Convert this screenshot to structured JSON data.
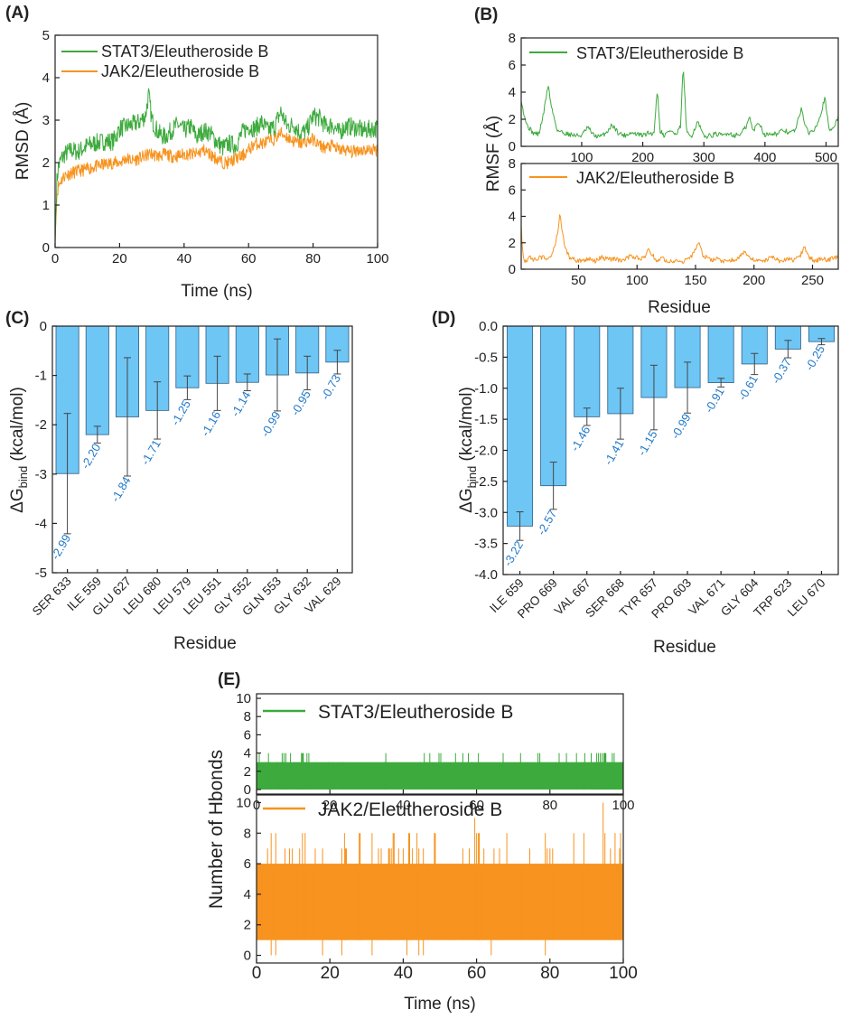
{
  "panel_labels": [
    "(A)",
    "(B)",
    "(C)",
    "(D)",
    "(E)"
  ],
  "colors": {
    "stat3": "#3daa3d",
    "jak2": "#f7931e",
    "bar": "#6ec6f5",
    "bar_edge": "#2c5f86",
    "value_label": "#1f78c8",
    "axis": "#222222"
  },
  "chart_data": [
    {
      "id": "A",
      "type": "line",
      "title": "",
      "xlabel": "Time (ns)",
      "ylabel": "RMSD (Å)",
      "xlim": [
        0,
        100
      ],
      "ylim": [
        0,
        5
      ],
      "xticks": [
        0,
        20,
        40,
        60,
        80,
        100
      ],
      "yticks": [
        0,
        1,
        2,
        3,
        4,
        5
      ],
      "legend": "top-left",
      "series": [
        {
          "name": "STAT3/Eleutheroside B",
          "color": "#3daa3d",
          "x": [
            0,
            0.5,
            1,
            2,
            3,
            5,
            7,
            10,
            12,
            15,
            18,
            20,
            22,
            24,
            26,
            28,
            29,
            30,
            32,
            34,
            36,
            38,
            40,
            42,
            44,
            46,
            48,
            50,
            52,
            54,
            56,
            58,
            60,
            62,
            64,
            66,
            68,
            70,
            72,
            74,
            76,
            78,
            80,
            82,
            84,
            86,
            88,
            90,
            92,
            94,
            96,
            98,
            100
          ],
          "values": [
            0.1,
            1.5,
            1.9,
            2.1,
            2.2,
            2.3,
            2.25,
            2.4,
            2.45,
            2.5,
            2.5,
            2.8,
            2.85,
            2.9,
            2.95,
            3.1,
            3.6,
            3.0,
            2.7,
            2.6,
            2.75,
            2.9,
            2.75,
            2.85,
            2.6,
            2.75,
            2.7,
            2.5,
            2.35,
            2.45,
            2.4,
            2.7,
            2.85,
            2.8,
            2.95,
            2.75,
            2.85,
            3.2,
            2.85,
            2.9,
            2.7,
            2.75,
            3.1,
            3.05,
            2.85,
            2.9,
            2.7,
            2.85,
            2.85,
            2.8,
            2.75,
            2.8,
            2.8
          ]
        },
        {
          "name": "JAK2/Eleutheroside B",
          "color": "#f7931e",
          "x": [
            0,
            0.5,
            1,
            2,
            3,
            5,
            7,
            10,
            12,
            15,
            18,
            20,
            22,
            24,
            26,
            28,
            29,
            30,
            32,
            34,
            36,
            38,
            40,
            42,
            44,
            46,
            48,
            50,
            52,
            54,
            56,
            58,
            60,
            62,
            64,
            66,
            68,
            70,
            72,
            74,
            76,
            78,
            80,
            82,
            84,
            86,
            88,
            90,
            92,
            94,
            96,
            98,
            100
          ],
          "values": [
            0.1,
            1.2,
            1.45,
            1.6,
            1.7,
            1.75,
            1.8,
            1.85,
            1.9,
            1.95,
            2.0,
            2.0,
            2.1,
            2.05,
            2.1,
            2.15,
            2.2,
            2.2,
            2.15,
            2.2,
            2.15,
            2.15,
            2.2,
            2.2,
            2.2,
            2.3,
            2.2,
            2.1,
            2.0,
            2.0,
            2.1,
            2.15,
            2.3,
            2.45,
            2.45,
            2.5,
            2.55,
            2.7,
            2.6,
            2.5,
            2.45,
            2.5,
            2.55,
            2.4,
            2.35,
            2.4,
            2.3,
            2.3,
            2.25,
            2.3,
            2.3,
            2.3,
            2.3
          ]
        }
      ]
    },
    {
      "id": "B",
      "type": "line",
      "title": "",
      "xlabel": "Residue",
      "ylabel": "RMSF (Å)",
      "subplots": [
        {
          "name": "STAT3/Eleutheroside B",
          "color": "#3daa3d",
          "xlim": [
            1,
            520
          ],
          "ylim": [
            0,
            8
          ],
          "xticks": [
            100,
            200,
            300,
            400,
            500
          ],
          "yticks": [
            0,
            2,
            4,
            6,
            8
          ],
          "x": [
            1,
            10,
            20,
            30,
            38,
            45,
            50,
            60,
            70,
            80,
            90,
            100,
            110,
            120,
            130,
            140,
            150,
            160,
            170,
            180,
            190,
            200,
            210,
            218,
            224,
            228,
            235,
            245,
            255,
            262,
            266,
            272,
            280,
            290,
            300,
            310,
            320,
            330,
            340,
            350,
            360,
            370,
            375,
            380,
            390,
            400,
            410,
            420,
            430,
            440,
            450,
            460,
            466,
            472,
            480,
            490,
            498,
            505,
            510,
            520
          ],
          "values": [
            3.3,
            1.6,
            1.0,
            0.9,
            2.5,
            4.6,
            3.0,
            1.2,
            1.0,
            0.9,
            0.8,
            0.8,
            1.4,
            0.8,
            0.7,
            1.0,
            1.6,
            1.0,
            0.8,
            1.0,
            0.9,
            0.8,
            1.0,
            0.9,
            4.3,
            1.2,
            0.8,
            1.2,
            0.8,
            1.5,
            6.0,
            0.9,
            0.8,
            1.8,
            0.7,
            0.8,
            0.9,
            0.8,
            1.0,
            0.8,
            0.9,
            1.5,
            2.2,
            1.1,
            1.8,
            0.8,
            1.0,
            0.9,
            1.2,
            1.0,
            1.2,
            2.9,
            1.4,
            1.0,
            1.2,
            2.2,
            3.6,
            1.2,
            1.3,
            2.1
          ]
        },
        {
          "name": "JAK2/Eleutheroside B",
          "color": "#f7931e",
          "xlim": [
            1,
            272
          ],
          "ylim": [
            0,
            8
          ],
          "xticks": [
            50,
            100,
            150,
            200,
            250
          ],
          "yticks": [
            0,
            2,
            4,
            6,
            8
          ],
          "x": [
            1,
            2,
            4,
            8,
            12,
            18,
            24,
            28,
            32,
            34,
            38,
            42,
            50,
            58,
            64,
            70,
            76,
            82,
            88,
            94,
            100,
            106,
            110,
            116,
            122,
            128,
            134,
            140,
            146,
            150,
            153,
            156,
            162,
            168,
            174,
            180,
            186,
            192,
            198,
            204,
            210,
            216,
            222,
            228,
            234,
            240,
            243,
            246,
            252,
            258,
            264,
            270,
            272
          ],
          "values": [
            3.3,
            1.5,
            0.6,
            0.9,
            0.7,
            0.9,
            0.8,
            1.2,
            2.7,
            4.1,
            1.8,
            0.9,
            0.6,
            0.8,
            0.6,
            0.9,
            0.7,
            0.8,
            0.6,
            1.0,
            0.9,
            0.8,
            1.5,
            0.7,
            0.8,
            0.6,
            0.7,
            0.6,
            0.9,
            1.5,
            2.1,
            1.1,
            0.7,
            0.8,
            0.6,
            0.7,
            0.8,
            1.4,
            0.8,
            0.6,
            0.7,
            0.9,
            0.6,
            0.8,
            0.7,
            1.1,
            1.8,
            1.0,
            0.6,
            0.8,
            0.7,
            0.9,
            1.0
          ]
        }
      ]
    },
    {
      "id": "C",
      "type": "bar",
      "title": "",
      "xlabel": "Residue",
      "ylabel": "ΔGbind (kcal/mol)",
      "ylim": [
        -5,
        0
      ],
      "yticks": [
        0,
        -1,
        -2,
        -3,
        -4,
        -5
      ],
      "ytick_labels": [
        "0",
        "-1",
        "-2",
        "-3",
        "-4",
        "-5"
      ],
      "categories": [
        "SER 633",
        "ILE 559",
        "GLU 627",
        "LEU 680",
        "LEU 579",
        "LEU 551",
        "GLY 552",
        "GLN 553",
        "GLY 632",
        "VAL 629"
      ],
      "values": [
        -2.99,
        -2.2,
        -1.84,
        -1.71,
        -1.25,
        -1.16,
        -1.14,
        -0.99,
        -0.95,
        -0.73
      ],
      "value_labels": [
        "-2.99",
        "-2.20",
        "-1.84",
        "-1.71",
        "-1.25",
        "-1.16",
        "-1.14",
        "-0.99",
        "-0.95",
        "-0.73"
      ],
      "errors": [
        1.22,
        0.17,
        1.2,
        0.58,
        0.24,
        0.55,
        0.17,
        0.73,
        0.34,
        0.24
      ]
    },
    {
      "id": "D",
      "type": "bar",
      "title": "",
      "xlabel": "Residue",
      "ylabel": "ΔGbind (kcal/mol)",
      "ylim": [
        -4,
        0
      ],
      "yticks": [
        0,
        -0.5,
        -1,
        -1.5,
        -2,
        -2.5,
        -3,
        -3.5,
        -4
      ],
      "ytick_labels": [
        "0.0",
        "-0.5",
        "-1.0",
        "-1.5",
        "-2.0",
        "-2.5",
        "-3.0",
        "-3.5",
        "-4.0"
      ],
      "categories": [
        "ILE 659",
        "PRO 669",
        "VAL 667",
        "SER 668",
        "TYR 657",
        "PRO 603",
        "VAL 671",
        "GLY 604",
        "TRP 623",
        "LEU 670"
      ],
      "values": [
        -3.22,
        -2.57,
        -1.46,
        -1.41,
        -1.15,
        -0.99,
        -0.91,
        -0.61,
        -0.37,
        -0.25
      ],
      "value_labels": [
        "-3.22",
        "-2.57",
        "-1.46",
        "-1.41",
        "-1.15",
        "-0.99",
        "-0.91",
        "-0.61",
        "-0.37",
        "-0.25"
      ],
      "errors": [
        0.23,
        0.38,
        0.14,
        0.41,
        0.52,
        0.41,
        0.07,
        0.17,
        0.14,
        0.05
      ]
    },
    {
      "id": "E",
      "type": "line",
      "title": "",
      "xlabel": "Time (ns)",
      "ylabel": "Number of Hbonds",
      "subplots": [
        {
          "name": "STAT3/Eleutheroside B",
          "color": "#3daa3d",
          "xlim": [
            0,
            100
          ],
          "ylim": [
            -0.5,
            10.5
          ],
          "xticks": [
            0,
            20,
            40,
            60,
            80,
            100
          ],
          "yticks": [
            0,
            2,
            4,
            6,
            8,
            10
          ],
          "mode": "hbond",
          "band": [
            0,
            3
          ],
          "spike": 4,
          "spike_segments": [
            [
              0,
              15,
              0.35
            ],
            [
              15,
              91,
              0.1
            ],
            [
              91,
              100,
              0.65
            ]
          ]
        },
        {
          "name": "JAK2/Eleutheroside B",
          "color": "#f7931e",
          "xlim": [
            0,
            100
          ],
          "ylim": [
            -0.5,
            10.5
          ],
          "xticks": [
            0,
            20,
            40,
            60,
            80,
            100
          ],
          "yticks": [
            0,
            2,
            4,
            6,
            8,
            10
          ],
          "mode": "hbond",
          "band": [
            1,
            6
          ],
          "spike": 8,
          "spike_segments": [
            [
              0,
              100,
              0.25
            ]
          ]
        }
      ]
    }
  ]
}
